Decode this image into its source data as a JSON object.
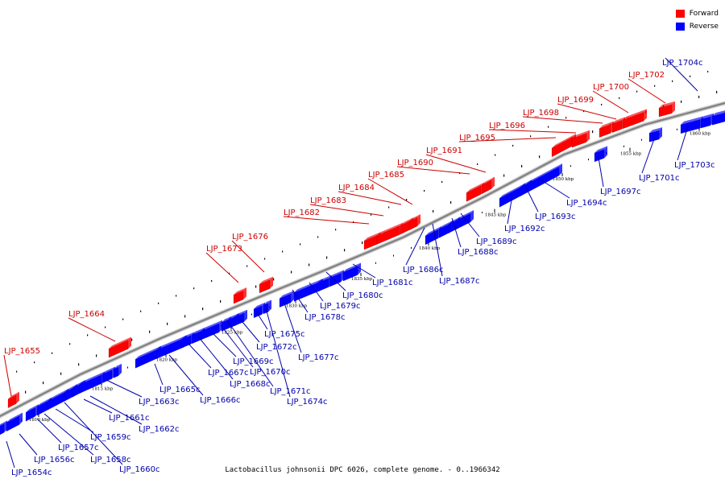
{
  "legend": {
    "forward_label": "Forward",
    "reverse_label": "Reverse",
    "forward_color": "#ff0000",
    "reverse_color": "#0000ff"
  },
  "caption": "Lactobacillus johnsonii DPC 6026, complete genome. - 0..1966342",
  "colors": {
    "forward_label": "#cc0000",
    "reverse_label": "#0000aa",
    "backbone": "#808080"
  },
  "scale_ticks": [
    "1810 kbp",
    "1815 kbp",
    "1820 kbp",
    "1825 kbp",
    "1830 kbp",
    "1835 kbp",
    "1840 kbp",
    "1845 kbp",
    "1850 kbp",
    "1855 kbp",
    "1860 kbp"
  ],
  "forward_genes": [
    "LJP_1655",
    "LJP_1664",
    "LJP_1673",
    "LJP_1676",
    "LJP_1682",
    "LJP_1683",
    "LJP_1684",
    "LJP_1685",
    "LJP_1690",
    "LJP_1691",
    "LJP_1695",
    "LJP_1696",
    "LJP_1698",
    "LJP_1699",
    "LJP_1700",
    "LJP_1702"
  ],
  "reverse_genes": [
    "LJP_1654c",
    "LJP_1656c",
    "LJP_1657c",
    "LJP_1658c",
    "LJP_1659c",
    "LJP_1660c",
    "LJP_1661c",
    "LJP_1662c",
    "LJP_1663c",
    "LJP_1665c",
    "LJP_1666c",
    "LJP_1667c",
    "LJP_1668c",
    "LJP_1669c",
    "LJP_1670c",
    "LJP_1671c",
    "LJP_1672c",
    "LJP_1674c",
    "LJP_1675c",
    "LJP_1677c",
    "LJP_1678c",
    "LJP_1679c",
    "LJP_1680c",
    "LJP_1681c",
    "LJP_1686c",
    "LJP_1687c",
    "LJP_1688c",
    "LJP_1689c",
    "LJP_1692c",
    "LJP_1693c",
    "LJP_1694c",
    "LJP_1697c",
    "LJP_1701c",
    "LJP_1703c",
    "LJP_1704c"
  ]
}
